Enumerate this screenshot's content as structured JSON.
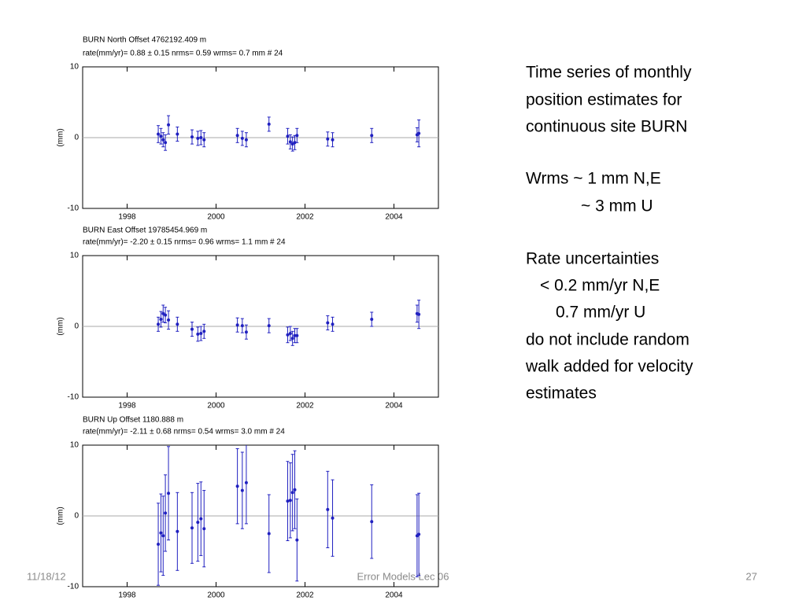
{
  "chart_data": [
    {
      "type": "scatter",
      "title": "BURN  North Offset  4762192.409 m",
      "subtitle": "rate(mm/yr)=   0.88 ± 0.15  nrms=  0.59  wrms=   0.7 mm # 24",
      "ylabel": "(mm)",
      "color": "#2020c0",
      "x": [
        1998.7,
        1998.76,
        1998.81,
        1998.86,
        1998.93,
        1999.13,
        1999.46,
        1999.59,
        1999.66,
        1999.73,
        2000.48,
        2000.59,
        2000.68,
        2001.19,
        2001.61,
        2001.67,
        2001.72,
        2001.77,
        2001.82,
        2002.51,
        2002.62,
        2003.5,
        2004.52,
        2004.56
      ],
      "values": [
        0.5,
        0.2,
        -0.3,
        -0.7,
        1.8,
        0.5,
        0.1,
        -0.1,
        0,
        -0.3,
        0.3,
        -0.1,
        -0.3,
        1.9,
        0.2,
        -0.6,
        -0.9,
        -0.7,
        0.3,
        -0.2,
        -0.3,
        0.3,
        0.4,
        0.6
      ],
      "errors": [
        1.2,
        1.1,
        1.0,
        1.1,
        1.3,
        1.0,
        1.0,
        1.0,
        1.0,
        1.0,
        1.0,
        1.0,
        1.0,
        1.0,
        1.1,
        1.0,
        1.0,
        1.0,
        1.0,
        1.0,
        1.0,
        1.0,
        1.0,
        1.9
      ],
      "xlim": [
        1997,
        2005
      ],
      "xticks": [
        1998,
        2000,
        2002,
        2004
      ],
      "ylim": [
        -10,
        10
      ],
      "yticks": [
        -10,
        0,
        10
      ]
    },
    {
      "type": "scatter",
      "title": "BURN  East Offset  19785454.969 m",
      "subtitle": "rate(mm/yr)=  -2.20 ± 0.15  nrms=  0.96  wrms=   1.1 mm # 24",
      "ylabel": "(mm)",
      "color": "#2020c0",
      "x": [
        1998.7,
        1998.76,
        1998.81,
        1998.86,
        1998.93,
        1999.13,
        1999.46,
        1999.59,
        1999.66,
        1999.73,
        2000.48,
        2000.59,
        2000.68,
        2001.19,
        2001.61,
        2001.67,
        2001.72,
        2001.77,
        2001.82,
        2002.51,
        2002.62,
        2003.5,
        2004.52,
        2004.56
      ],
      "values": [
        0.3,
        1.0,
        1.8,
        1.6,
        0.9,
        0.3,
        -0.4,
        -1.1,
        -1.0,
        -0.7,
        0.2,
        0.1,
        -0.8,
        0.1,
        -1.2,
        -1.0,
        -1.7,
        -1.3,
        -1.3,
        0.5,
        0.3,
        1.0,
        1.8,
        1.7
      ],
      "errors": [
        1.0,
        1.1,
        1.2,
        1.1,
        1.3,
        1.0,
        1.0,
        1.0,
        1.0,
        1.0,
        1.0,
        1.0,
        1.0,
        1.0,
        1.1,
        1.0,
        1.0,
        1.0,
        1.0,
        1.0,
        1.0,
        1.0,
        1.2,
        2.0
      ],
      "xlim": [
        1997,
        2005
      ],
      "xticks": [
        1998,
        2000,
        2002,
        2004
      ],
      "ylim": [
        -10,
        10
      ],
      "yticks": [
        -10,
        0,
        10
      ]
    },
    {
      "type": "scatter",
      "title": "BURN  Up Offset     1180.888 m",
      "subtitle": "rate(mm/yr)=  -2.11 ± 0.68  nrms=  0.54  wrms=   3.0 mm # 24",
      "ylabel": "(mm)",
      "color": "#2020c0",
      "x": [
        1998.7,
        1998.76,
        1998.81,
        1998.86,
        1998.93,
        1999.13,
        1999.46,
        1999.59,
        1999.66,
        1999.73,
        2000.48,
        2000.59,
        2000.68,
        2001.19,
        2001.61,
        2001.67,
        2001.72,
        2001.77,
        2001.82,
        2002.51,
        2002.62,
        2003.5,
        2004.52,
        2004.56
      ],
      "values": [
        -4.0,
        -2.4,
        -2.8,
        0.4,
        3.2,
        -2.2,
        -1.7,
        -0.9,
        -0.4,
        -1.8,
        4.2,
        3.6,
        4.7,
        -2.5,
        2.1,
        2.2,
        3.3,
        3.7,
        -3.4,
        0.9,
        -0.3,
        -0.8,
        -2.8,
        -2.6
      ],
      "errors": [
        5.8,
        5.5,
        5.6,
        5.4,
        6.6,
        5.5,
        5.0,
        5.5,
        5.2,
        5.4,
        5.3,
        5.4,
        5.8,
        5.5,
        5.6,
        5.3,
        5.4,
        5.5,
        5.8,
        5.4,
        5.4,
        5.2,
        5.8,
        5.8
      ],
      "xlim": [
        1997,
        2005
      ],
      "xticks": [
        1998,
        2000,
        2002,
        2004
      ],
      "ylim": [
        -10,
        10
      ],
      "yticks": [
        -10,
        0,
        10
      ]
    }
  ],
  "slide": {
    "lines": [
      "Time series of monthly",
      "position estimates for",
      "continuous site BURN",
      "Wrms ~ 1 mm N,E",
      "~ 3 mm U",
      "Rate uncertainties",
      "< 0.2 mm/yr N,E",
      "0.7 mm/yr  U",
      "do not include random",
      "walk added for velocity",
      "estimates"
    ],
    "footer_date": "11/18/12",
    "footer_title": "Error Models Lec 06",
    "page_number": "27"
  }
}
